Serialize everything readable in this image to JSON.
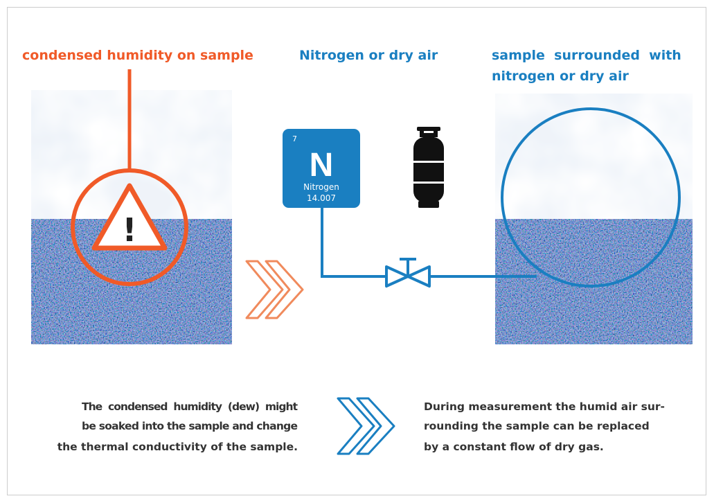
{
  "headings": {
    "left": "condensed humidity on sample",
    "middle": "Nitrogen or dry air",
    "right": [
      "sample  surrounded  with",
      "nitrogen or dry air"
    ]
  },
  "element": {
    "number": "7",
    "symbol": "N",
    "name": "Nitrogen",
    "mass": "14.007"
  },
  "warning": "!",
  "captions": {
    "left": [
      "The  condensed  humidity  (dew)  might",
      "be soaked into the sample and change",
      "the thermal conductivity of the sample."
    ],
    "right": [
      "During measurement the humid air sur-",
      "rounding the sample can be replaced",
      "by a constant flow of dry gas."
    ]
  }
}
